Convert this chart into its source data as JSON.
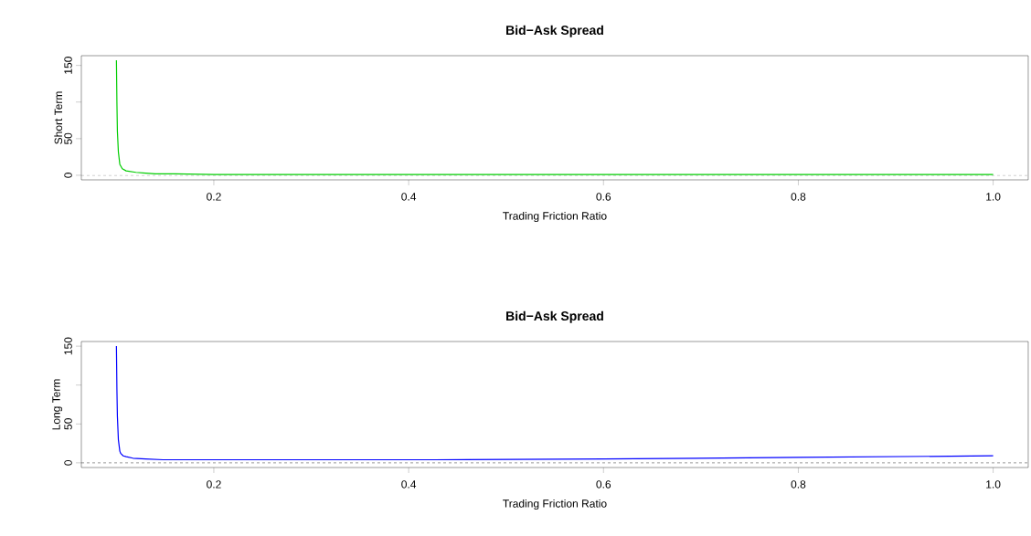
{
  "chart_data": [
    {
      "type": "line",
      "title": "Bid−Ask Spread",
      "xlabel": "Trading Friction Ratio",
      "ylabel": "Short Term",
      "color": "#00cd00",
      "x": [
        0.1,
        0.1005,
        0.101,
        0.102,
        0.1035,
        0.106,
        0.11,
        0.115,
        0.12,
        0.13,
        0.14,
        0.16,
        0.2,
        0.3,
        0.4,
        0.6,
        0.8,
        1.0
      ],
      "values": [
        157,
        100,
        60,
        32,
        15,
        9,
        6,
        5,
        4,
        3,
        2,
        2,
        1,
        1,
        1,
        1,
        1,
        1
      ],
      "xlim": [
        0.064,
        1.036
      ],
      "ylim": [
        -6.3,
        163.3
      ],
      "xticks": [
        0.2,
        0.4,
        0.6,
        0.8,
        {
          "value": 1.0,
          "label": "1.0"
        }
      ],
      "yticks": [
        0,
        50,
        {
          "value": 100,
          "label": null
        },
        150
      ],
      "ref_lines": [
        {
          "axis": "y",
          "value": 0,
          "color": "#000000",
          "line_style": "dashed"
        }
      ]
    },
    {
      "type": "line",
      "title": "Bid−Ask Spread",
      "xlabel": "Trading Friction Ratio",
      "ylabel": "Long Term",
      "color": "#0000ff",
      "x": [
        0.1,
        0.1005,
        0.101,
        0.102,
        0.1035,
        0.1045,
        0.107,
        0.11,
        0.117,
        0.13,
        0.148,
        0.2,
        0.3,
        0.426,
        0.6,
        0.8,
        1.0
      ],
      "values": [
        150,
        95,
        60,
        30,
        15,
        12,
        9,
        8,
        6,
        5,
        4,
        4,
        4,
        4,
        5,
        7,
        9
      ],
      "xlim": [
        0.064,
        1.036
      ],
      "ylim": [
        -6,
        156
      ],
      "xticks": [
        0.2,
        0.4,
        0.6,
        0.8,
        {
          "value": 1.0,
          "label": "1.0"
        }
      ],
      "yticks": [
        0,
        50,
        {
          "value": 100,
          "label": null
        },
        150
      ],
      "ref_lines": [
        {
          "axis": "y",
          "value": 0,
          "color": "#000000",
          "line_style": "dashed"
        }
      ]
    }
  ]
}
